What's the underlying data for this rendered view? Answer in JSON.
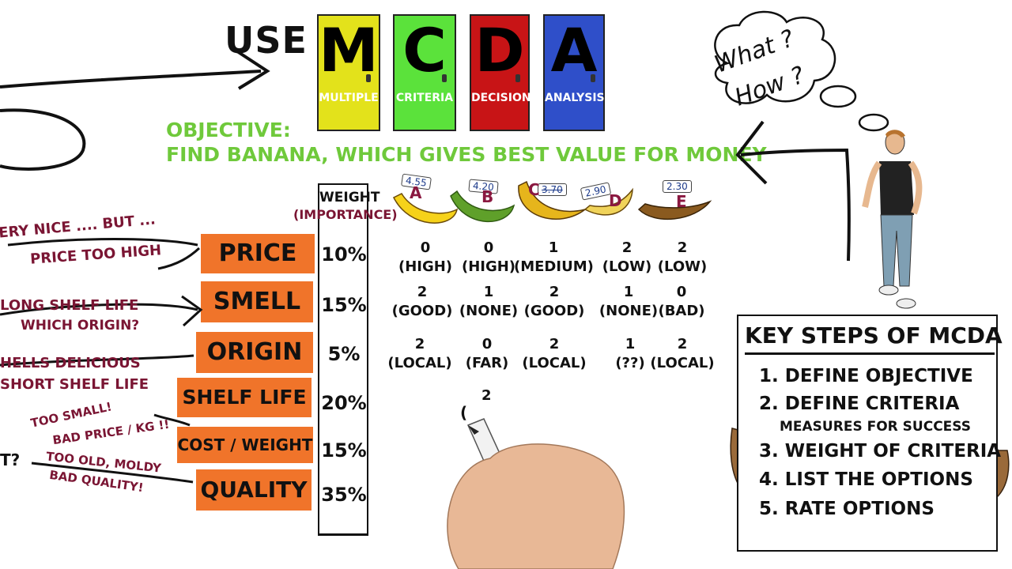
{
  "header": {
    "use_label": "USE",
    "doors": [
      {
        "letter": "M",
        "word": "MULTIPLE",
        "color": "#e3e21b"
      },
      {
        "letter": "C",
        "word": "CRITERIA",
        "color": "#5be23b"
      },
      {
        "letter": "D",
        "word": "DECISION",
        "color": "#c81416"
      },
      {
        "letter": "A",
        "word": "ANALYSIS",
        "color": "#2f4fc9"
      }
    ]
  },
  "objective": {
    "title": "OBJECTIVE:",
    "text": "FIND BANANA, WHICH GIVES BEST VALUE FOR MONEY",
    "color": "#6fc93b"
  },
  "thought": {
    "line1": "What ?",
    "line2": "How ?"
  },
  "table": {
    "weight_header": "WEIGHT",
    "weight_sub": "(IMPORTANCE)",
    "options": [
      {
        "letter": "A",
        "price": "4.55"
      },
      {
        "letter": "B",
        "price": "4.20"
      },
      {
        "letter": "C",
        "price": "3.70"
      },
      {
        "letter": "D",
        "price": "2.90"
      },
      {
        "letter": "E",
        "price": "2.30"
      }
    ],
    "criteria": [
      {
        "name": "PRICE",
        "weight": "10%"
      },
      {
        "name": "SMELL",
        "weight": "15%"
      },
      {
        "name": "ORIGIN",
        "weight": "5%"
      },
      {
        "name": "SHELF LIFE",
        "weight": "20%"
      },
      {
        "name": "COST / WEIGHT",
        "weight": "15%"
      },
      {
        "name": "QUALITY",
        "weight": "35%"
      }
    ],
    "ratings": {
      "price": [
        {
          "score": "0",
          "desc": "(HIGH)"
        },
        {
          "score": "0",
          "desc": "(HIGH)"
        },
        {
          "score": "1",
          "desc": "(MEDIUM)"
        },
        {
          "score": "2",
          "desc": "(LOW)"
        },
        {
          "score": "2",
          "desc": "(LOW)"
        }
      ],
      "smell": [
        {
          "score": "2",
          "desc": "(GOOD)"
        },
        {
          "score": "1",
          "desc": "(NONE)"
        },
        {
          "score": "2",
          "desc": "(GOOD)"
        },
        {
          "score": "1",
          "desc": "(NONE)"
        },
        {
          "score": "0",
          "desc": "(BAD)"
        }
      ],
      "origin": [
        {
          "score": "2",
          "desc": "(LOCAL)"
        },
        {
          "score": "0",
          "desc": "(FAR)"
        },
        {
          "score": "2",
          "desc": "(LOCAL)"
        },
        {
          "score": "1",
          "desc": "(??)"
        },
        {
          "score": "2",
          "desc": "(LOCAL)"
        }
      ],
      "shelf_partial": {
        "score": "2",
        "desc": "("
      }
    }
  },
  "notes": {
    "n1a": "ERY NICE ....  BUT ...",
    "n1b": "PRICE TOO HIGH",
    "n2a": "LONG SHELF LIFE",
    "n2b": "WHICH ORIGIN?",
    "n3a": "HELLS DELICIOUS",
    "n3b": "SHORT SHELF LIFE",
    "n4a": "TOO SMALL!",
    "n4b": "BAD PRICE / KG !!",
    "n5a": "TOO OLD, MOLDY",
    "n5b": "BAD QUALITY!",
    "n6": "T?"
  },
  "key_steps": {
    "title": "KEY STEPS OF MCDA",
    "steps": [
      "1. DEFINE OBJECTIVE",
      "2. DEFINE CRITERIA",
      "MEASURES FOR SUCCESS",
      "3. WEIGHT OF CRITERIA",
      "4. LIST THE OPTIONS",
      "5. RATE OPTIONS"
    ]
  },
  "colors": {
    "label_orange": "#f0742a",
    "note_maroon": "#7a1533",
    "objective_green": "#6fc93b"
  }
}
